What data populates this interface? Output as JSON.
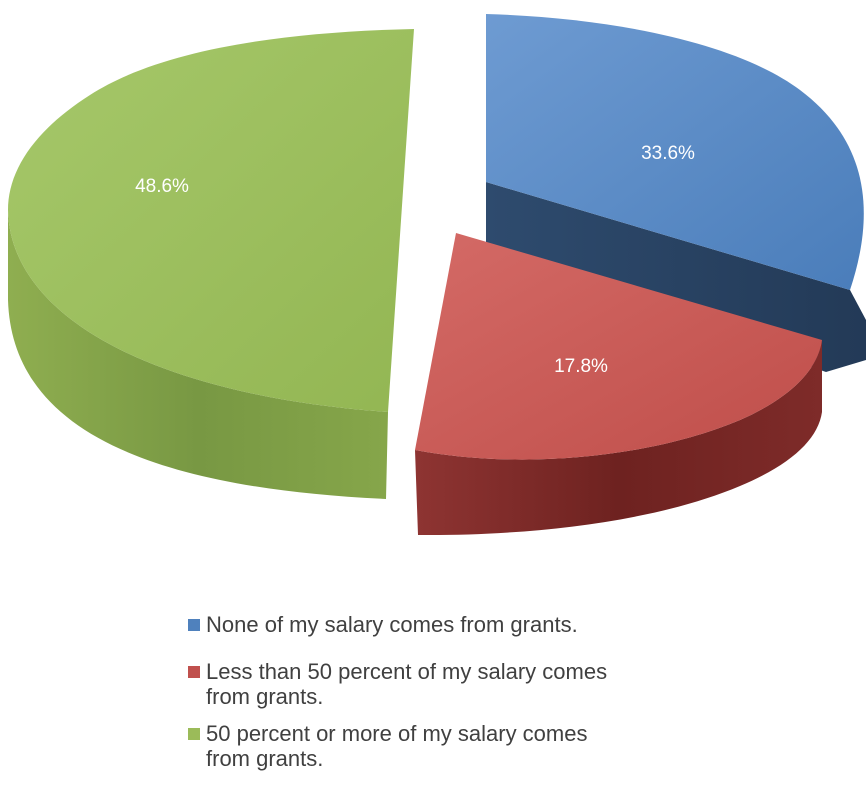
{
  "chart_data": {
    "type": "pie",
    "style": "3d-exploded",
    "title": "",
    "slices": [
      {
        "label": "None of my salary comes from grants.",
        "value": 33.6,
        "display": "33.6%",
        "color": "#4F81BD"
      },
      {
        "label": "Less than 50 percent of my salary comes from grants.",
        "value": 17.8,
        "display": "17.8%",
        "color": "#C0504D"
      },
      {
        "label": "50 percent or more of my salary comes from grants.",
        "value": 48.6,
        "display": "48.6%",
        "color": "#9BBB59"
      }
    ],
    "legend_position": "bottom"
  },
  "legend": {
    "items": [
      {
        "line1": "None of my salary comes from grants.",
        "line2": ""
      },
      {
        "line1": "Less than 50 percent of my salary comes",
        "line2": "from grants."
      },
      {
        "line1": "50 percent or more of my salary comes",
        "line2": "from grants."
      }
    ]
  }
}
